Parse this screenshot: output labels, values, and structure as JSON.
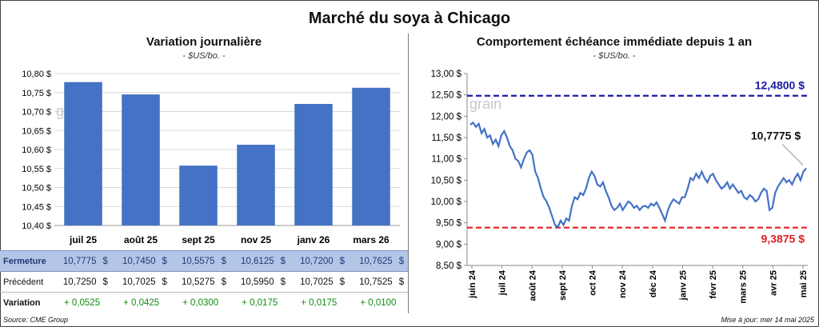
{
  "title": "Marché du soya à Chicago",
  "left": {
    "title": "Variation journalière",
    "unit": "- $US/bo. -",
    "watermark": "grain",
    "table": {
      "rows": [
        {
          "label": "Fermeture",
          "values": [
            "10,7775",
            "10,7450",
            "10,5575",
            "10,6125",
            "10,7200",
            "10,7625"
          ]
        },
        {
          "label": "Précédent",
          "values": [
            "10,7250",
            "10,7025",
            "10,5275",
            "10,5950",
            "10,7025",
            "10,7525"
          ]
        },
        {
          "label": "Variation",
          "values": [
            "+ 0,0525",
            "+ 0,0425",
            "+ 0,0300",
            "+ 0,0175",
            "+ 0,0175",
            "+ 0,0100"
          ]
        }
      ],
      "currency": "$"
    }
  },
  "right": {
    "title": "Comportement  échéance immédiate depuis 1 an",
    "unit": "- $US/bo. -",
    "watermark": "grain",
    "max_label": "12,4800 $",
    "min_label": "9,3875 $",
    "last_label": "10,7775 $",
    "max_color": "#1a1aa6",
    "min_color": "#e02020"
  },
  "chart_data": [
    {
      "type": "bar",
      "categories": [
        "juil 25",
        "août 25",
        "sept 25",
        "nov 25",
        "janv 26",
        "mars 26"
      ],
      "values": [
        10.7775,
        10.745,
        10.5575,
        10.6125,
        10.72,
        10.7625
      ],
      "ylim": [
        10.4,
        10.8
      ],
      "yticks": [
        "10,40 $",
        "10,45 $",
        "10,50 $",
        "10,55 $",
        "10,60 $",
        "10,65 $",
        "10,70 $",
        "10,75 $",
        "10,80 $"
      ],
      "grid": true,
      "color": "#4472c4"
    },
    {
      "type": "line",
      "ylim": [
        8.5,
        13.0
      ],
      "yticks": [
        "8,50 $",
        "9,00 $",
        "9,50 $",
        "10,00 $",
        "10,50 $",
        "11,00 $",
        "11,50 $",
        "12,00 $",
        "12,50 $",
        "13,00 $"
      ],
      "xticks": [
        "juin 24",
        "juil 24",
        "août 24",
        "sept 24",
        "oct 24",
        "nov 24",
        "déc 24",
        "janv 25",
        "févr 25",
        "mars 25",
        "avr 25",
        "mai 25"
      ],
      "values": [
        11.8,
        11.85,
        11.75,
        11.82,
        11.6,
        11.7,
        11.5,
        11.55,
        11.35,
        11.45,
        11.3,
        11.55,
        11.65,
        11.5,
        11.3,
        11.2,
        11.0,
        10.95,
        10.8,
        11.0,
        11.15,
        11.2,
        11.1,
        10.7,
        10.55,
        10.3,
        10.1,
        10.0,
        9.85,
        9.65,
        9.45,
        9.4,
        9.55,
        9.45,
        9.6,
        9.55,
        9.9,
        10.1,
        10.05,
        10.2,
        10.15,
        10.3,
        10.55,
        10.7,
        10.6,
        10.4,
        10.35,
        10.45,
        10.25,
        10.1,
        9.9,
        9.8,
        9.85,
        9.95,
        9.8,
        9.9,
        10.0,
        9.95,
        9.85,
        9.9,
        9.8,
        9.88,
        9.9,
        9.85,
        9.95,
        9.9,
        9.98,
        9.85,
        9.7,
        9.55,
        9.8,
        9.95,
        10.05,
        10.0,
        9.95,
        10.1,
        10.1,
        10.3,
        10.55,
        10.5,
        10.65,
        10.55,
        10.7,
        10.55,
        10.45,
        10.6,
        10.65,
        10.5,
        10.4,
        10.3,
        10.35,
        10.45,
        10.3,
        10.4,
        10.3,
        10.2,
        10.25,
        10.1,
        10.05,
        10.15,
        10.1,
        10.0,
        10.05,
        10.2,
        10.3,
        10.25,
        9.8,
        9.85,
        10.2,
        10.35,
        10.45,
        10.55,
        10.45,
        10.5,
        10.4,
        10.55,
        10.65,
        10.5,
        10.7,
        10.7775
      ],
      "ref_lines": [
        {
          "value": 12.48,
          "label": "12,4800 $",
          "color": "#1a1aa6"
        },
        {
          "value": 9.3875,
          "label": "9,3875 $",
          "color": "#e02020"
        }
      ],
      "last_value": 10.7775,
      "color": "#4472c4"
    }
  ],
  "footer": {
    "source": "Source: CME Group",
    "updated": "Mise à jour: mer 14 mai 2025"
  }
}
